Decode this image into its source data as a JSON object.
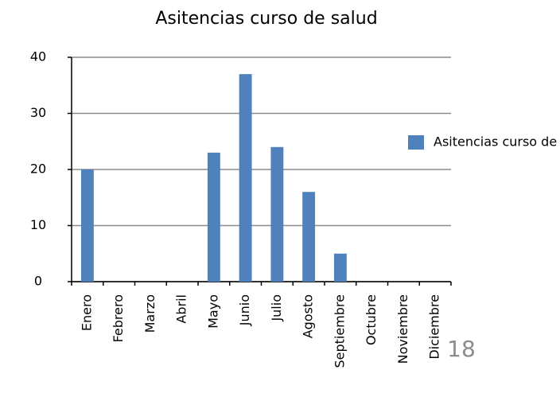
{
  "chart_data": {
    "type": "bar",
    "title": "Asitencias curso de salud",
    "categories": [
      "Enero",
      "Febrero",
      "Marzo",
      "Abril",
      "Mayo",
      "Junio",
      "Julio",
      "Agosto",
      "Septiembre",
      "Octubre",
      "Noviembre",
      "Diciembre"
    ],
    "series": [
      {
        "name": "Asitencias curso de salud",
        "color": "#4f81bd",
        "values": [
          20,
          0,
          0,
          0,
          23,
          37,
          24,
          16,
          5,
          0,
          0,
          0
        ]
      }
    ],
    "ylim": [
      0,
      40
    ],
    "yticks": [
      0,
      10,
      20,
      30,
      40
    ],
    "grid": true,
    "legend": "right"
  },
  "page_number": "18"
}
